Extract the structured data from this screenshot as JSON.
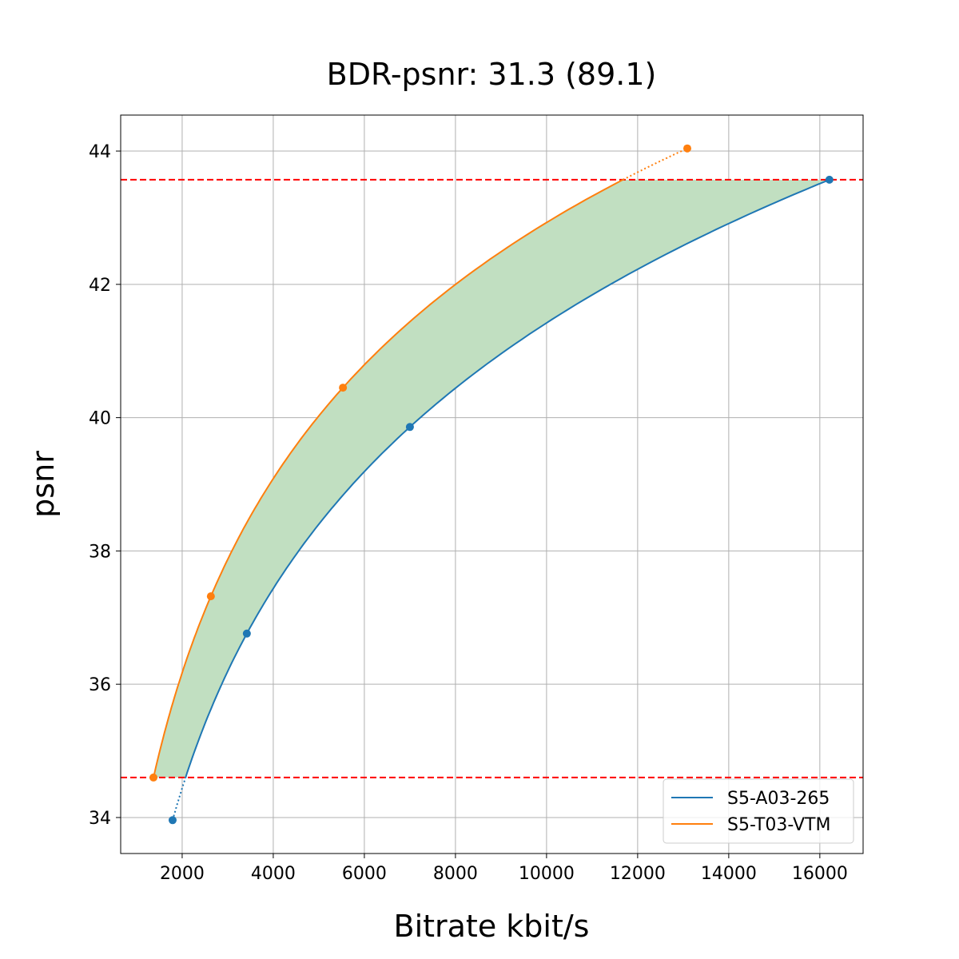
{
  "chart_data": {
    "type": "line",
    "title": "BDR-psnr: 31.3 (89.1)",
    "xlabel": "Bitrate kbit/s",
    "ylabel": "psnr",
    "xlim": [
      650,
      16950
    ],
    "ylim": [
      33.46,
      44.54
    ],
    "xticks": [
      2000,
      4000,
      6000,
      8000,
      10000,
      12000,
      14000,
      16000
    ],
    "yticks": [
      34,
      36,
      38,
      40,
      42,
      44
    ],
    "grid": true,
    "legend_position": "lower-right",
    "series": [
      {
        "name": "S5-A03-265",
        "color": "#1f77b4",
        "x": [
          1790,
          3420,
          7000,
          16210
        ],
        "y": [
          33.96,
          36.76,
          39.86,
          43.57
        ]
      },
      {
        "name": "S5-T03-VTM",
        "color": "#ff7f0e",
        "x": [
          1370,
          2630,
          5530,
          13090
        ],
        "y": [
          34.6,
          37.32,
          40.45,
          44.04
        ]
      }
    ],
    "reference_lines": {
      "color": "#ff0000",
      "style": "dashed",
      "y": [
        43.57,
        34.6
      ]
    },
    "fill_color": "#c1dfc1"
  }
}
